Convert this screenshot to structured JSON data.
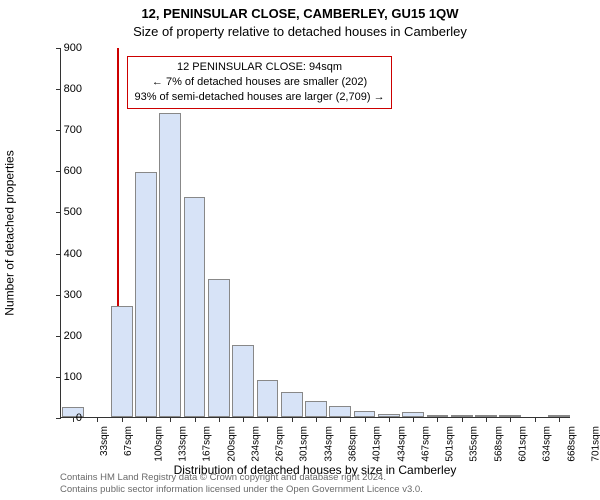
{
  "chart": {
    "type": "histogram",
    "title_main": "12, PENINSULAR CLOSE, CAMBERLEY, GU15 1QW",
    "title_sub": "Size of property relative to detached houses in Camberley",
    "ylabel": "Number of detached properties",
    "xlabel": "Distribution of detached houses by size in Camberley",
    "title_fontsize": 13,
    "label_fontsize": 12,
    "tick_fontsize": 11,
    "bar_color": "#d7e3f7",
    "bar_border": "#888888",
    "background_color": "#ffffff",
    "axis_color": "#333333",
    "marker_color": "#cc0000",
    "marker_x": 94,
    "x_start": 16.3,
    "x_step": 33.4,
    "ylim": [
      0,
      900
    ],
    "ytick_step": 100,
    "x_ticks": [
      "33sqm",
      "67sqm",
      "100sqm",
      "133sqm",
      "167sqm",
      "200sqm",
      "234sqm",
      "267sqm",
      "301sqm",
      "334sqm",
      "368sqm",
      "401sqm",
      "434sqm",
      "467sqm",
      "501sqm",
      "535sqm",
      "568sqm",
      "601sqm",
      "634sqm",
      "668sqm",
      "701sqm"
    ],
    "values": [
      25,
      0,
      270,
      595,
      740,
      535,
      335,
      175,
      90,
      60,
      38,
      28,
      15,
      8,
      12,
      4,
      2,
      2,
      2,
      0,
      2
    ],
    "annotation": {
      "line1": "12 PENINSULAR CLOSE: 94sqm",
      "line2": "← 7% of detached houses are smaller (202)",
      "line3": "93% of semi-detached houses are larger (2,709) →",
      "border_color": "#cc0000",
      "bg_color": "#ffffff",
      "fontsize": 11
    }
  },
  "footer": {
    "line1": "Contains HM Land Registry data © Crown copyright and database right 2024.",
    "line2": "Contains public sector information licensed under the Open Government Licence v3.0.",
    "color": "#6a6a6a",
    "fontsize": 9.5
  }
}
